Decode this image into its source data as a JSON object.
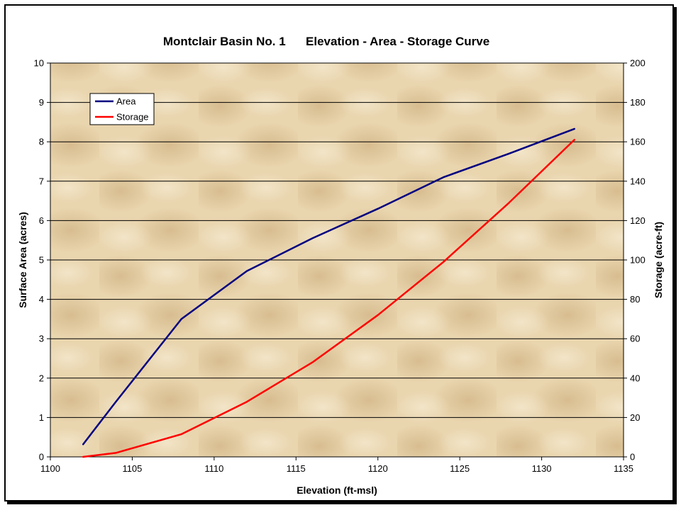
{
  "chart_data": {
    "type": "line",
    "title": "Montclair Basin No. 1      Elevation - Area - Storage Curve",
    "xlabel": "Elevation (ft-msl)",
    "ylabel": "Surface Area (acres)",
    "y2label": "Storage (acre-ft)",
    "xlim": [
      1100,
      1135
    ],
    "ylim": [
      0,
      10
    ],
    "y2lim": [
      0,
      200
    ],
    "xticks": [
      1100,
      1105,
      1110,
      1115,
      1120,
      1125,
      1130,
      1135
    ],
    "yticks": [
      0,
      1,
      2,
      3,
      4,
      5,
      6,
      7,
      8,
      9,
      10
    ],
    "y2ticks": [
      0,
      20,
      40,
      60,
      80,
      100,
      120,
      140,
      160,
      180,
      200
    ],
    "grid": true,
    "legend_position": "top-left",
    "series": [
      {
        "name": "Area",
        "axis": "left",
        "color": "#000080",
        "x": [
          1102,
          1104,
          1108,
          1112,
          1116,
          1120,
          1124,
          1128,
          1132
        ],
        "y": [
          0.32,
          1.4,
          3.5,
          4.72,
          5.55,
          6.3,
          7.1,
          7.7,
          8.33
        ]
      },
      {
        "name": "Storage",
        "axis": "right",
        "color": "#ff0000",
        "x": [
          1102,
          1104,
          1108,
          1112,
          1116,
          1120,
          1124,
          1128,
          1132
        ],
        "y": [
          0,
          2,
          11.5,
          28,
          48,
          72,
          99,
          129,
          161
        ]
      }
    ]
  }
}
